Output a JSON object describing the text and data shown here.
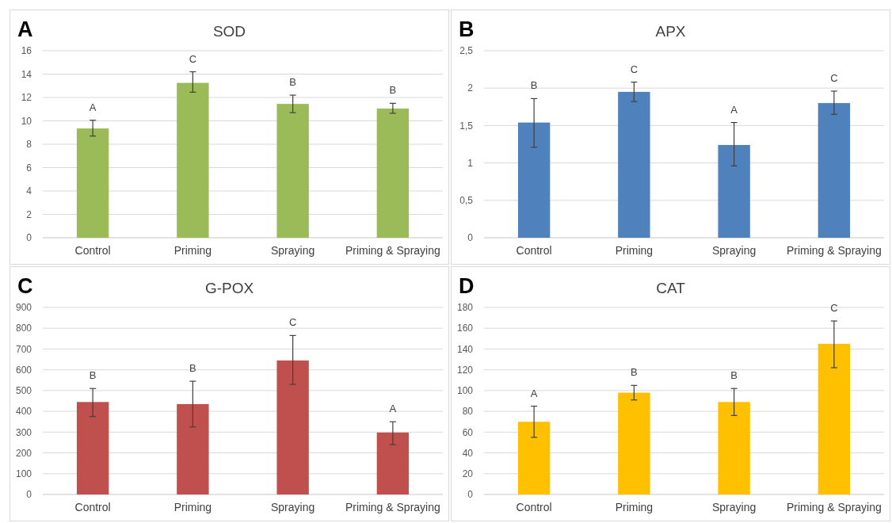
{
  "chart_data": [
    {
      "type": "bar",
      "title": "SOD",
      "categories": [
        "Control",
        "Priming",
        "Spraying",
        "Priming & Spraying"
      ],
      "values": [
        9.35,
        13.25,
        11.45,
        11.05
      ],
      "errors": [
        [
          8.7,
          10.05
        ],
        [
          12.45,
          14.2
        ],
        [
          10.7,
          12.2
        ],
        [
          10.65,
          11.5
        ]
      ],
      "color": "#9bbb59",
      "ylim": [
        0,
        16
      ],
      "yticks": [
        0,
        2,
        4,
        6,
        8,
        10,
        12,
        14,
        16
      ],
      "grid": "y",
      "annotations": [
        "A",
        "A",
        "C",
        "B",
        "B"
      ]
    },
    {
      "type": "bar",
      "title": "APX",
      "categories": [
        "Control",
        "Priming",
        "Spraying",
        "Priming & Spraying"
      ],
      "values": [
        1.54,
        1.95,
        1.24,
        1.8
      ],
      "errors": [
        [
          1.21,
          1.86
        ],
        [
          1.82,
          2.08
        ],
        [
          0.96,
          1.54
        ],
        [
          1.65,
          1.96
        ]
      ],
      "color": "#4f81bd",
      "ylim": [
        0,
        2.5
      ],
      "yticks": [
        {
          "value": 0,
          "label": "0"
        },
        {
          "value": 0.5,
          "label": "0,5"
        },
        {
          "value": 1,
          "label": "1"
        },
        {
          "value": 1.5,
          "label": "1,5"
        },
        {
          "value": 2,
          "label": "2"
        },
        {
          "value": 2.5,
          "label": "2,5"
        }
      ],
      "grid": "y",
      "annotations": [
        "B",
        "B",
        "C",
        "A",
        "C"
      ]
    },
    {
      "type": "bar",
      "title": "G-POX",
      "categories": [
        "Control",
        "Priming",
        "Spraying",
        "Priming & Spraying"
      ],
      "values": [
        445,
        435,
        645,
        298
      ],
      "errors": [
        [
          375,
          510
        ],
        [
          325,
          545
        ],
        [
          530,
          765
        ],
        [
          240,
          350
        ]
      ],
      "color": "#c0504d",
      "ylim": [
        0,
        900
      ],
      "yticks": [
        0,
        100,
        200,
        300,
        400,
        500,
        600,
        700,
        800,
        900
      ],
      "grid": "y",
      "annotations": [
        "C",
        "B",
        "B",
        "C",
        "A"
      ]
    },
    {
      "type": "bar",
      "title": "CAT",
      "categories": [
        "Control",
        "Priming",
        "Spraying",
        "Priming & Spraying"
      ],
      "values": [
        70,
        98,
        89,
        145
      ],
      "errors": [
        [
          55,
          85
        ],
        [
          91,
          105
        ],
        [
          76,
          102
        ],
        [
          122,
          167
        ]
      ],
      "color": "#ffc000",
      "ylim": [
        0,
        180
      ],
      "yticks": [
        0,
        20,
        40,
        60,
        80,
        100,
        120,
        140,
        160,
        180
      ],
      "grid": "y",
      "annotations": [
        "D",
        "A",
        "B",
        "B",
        "C"
      ]
    }
  ]
}
